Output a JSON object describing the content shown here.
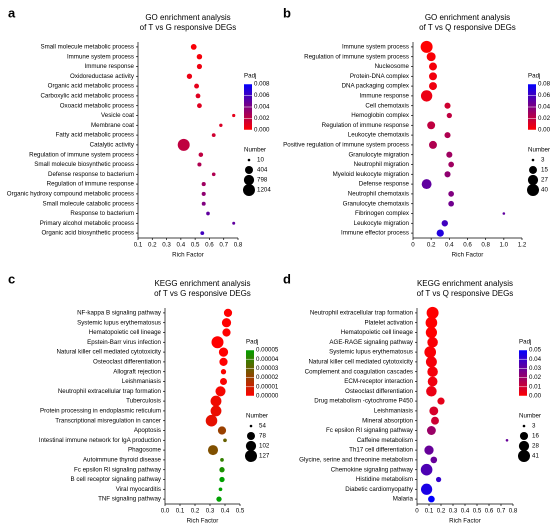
{
  "chart_data": [
    {
      "type": "bubble",
      "label": "a",
      "title": "GO enrichment analysis",
      "subtitle": "of T vs G responsive DEGs",
      "categories": [
        "Small molecule metabolic process",
        "Immune system process",
        "Immune response",
        "Oxidoreductase activity",
        "Organic acid metabolic process",
        "Carboxylic acid metabolic process",
        "Oxoacid metabolic process",
        "Vesicle coat",
        "Membrane coat",
        "Fatty acid metabolic process",
        "Catalytic activity",
        "Regulation of immune system process",
        "Small molecule biosynthetic process",
        "Defense response to bacterium",
        "Regulation of immune response",
        "Organic hydroxy compound metabolic process",
        "Small molecule catabolic process",
        "Response to bacterium",
        "Primary alcohol metabolic process",
        "Organic acid biosynthetic process"
      ],
      "values": [
        0.49,
        0.53,
        0.53,
        0.46,
        0.51,
        0.52,
        0.53,
        0.77,
        0.68,
        0.63,
        0.42,
        0.54,
        0.53,
        0.63,
        0.56,
        0.56,
        0.56,
        0.59,
        0.77,
        0.55
      ],
      "sizes": [
        150,
        120,
        100,
        110,
        80,
        75,
        75,
        15,
        18,
        30,
        1204,
        60,
        40,
        25,
        40,
        40,
        35,
        25,
        12,
        30
      ],
      "padj": [
        0.0002,
        0.0003,
        0.0005,
        0.0006,
        0.0008,
        0.001,
        0.001,
        0.0008,
        0.0012,
        0.0015,
        0.002,
        0.002,
        0.0025,
        0.0025,
        0.003,
        0.0035,
        0.004,
        0.005,
        0.005,
        0.006
      ],
      "xlim": [
        0.1,
        0.8
      ],
      "xticks": [
        0.1,
        0.2,
        0.3,
        0.4,
        0.5,
        0.6,
        0.7,
        0.8
      ],
      "xlabel": "Rich Factor",
      "padj_title": "Padj",
      "padj_lim": [
        0,
        0.008
      ],
      "padj_ticks": [
        {
          "value": 0,
          "label": "0.000"
        },
        {
          "value": 0.002,
          "label": "0.002"
        },
        {
          "value": 0.004,
          "label": "0.004"
        },
        {
          "value": 0.006,
          "label": "0.006"
        },
        {
          "value": 0.008,
          "label": "0.008"
        }
      ],
      "colors": [
        "#ff0000",
        "#0000ff"
      ],
      "size_title": "Number",
      "size_ticks": [
        10,
        404,
        798,
        1204
      ]
    },
    {
      "type": "bubble",
      "label": "b",
      "title": "GO enrichment analysis",
      "subtitle": "of T vs Q responsive DEGs",
      "categories": [
        "Immune system process",
        "Regulation of immune system process",
        "Nucleosome",
        "Protein-DNA complex",
        "DNA packaging complex",
        "Immune response",
        "Cell chemotaxis",
        "Hemoglobin complex",
        "Regulation of immune response",
        "Leukocyte chemotaxis",
        "Positive regulation of immune system process",
        "Granulocyte migration",
        "Neutrophil migration",
        "Myeloid leukocyte migration",
        "Defense response",
        "Neutrophil chemotaxis",
        "Granulocyte chemotaxis",
        "Fibrinogen complex",
        "Leukocyte migration",
        "Immune effector process"
      ],
      "values": [
        0.15,
        0.2,
        0.22,
        0.22,
        0.22,
        0.15,
        0.38,
        0.4,
        0.2,
        0.38,
        0.22,
        0.4,
        0.42,
        0.38,
        0.15,
        0.42,
        0.42,
        1.0,
        0.35,
        0.3
      ],
      "sizes": [
        40,
        20,
        15,
        15,
        15,
        35,
        8,
        6,
        15,
        8,
        15,
        8,
        7,
        8,
        25,
        7,
        7,
        3,
        9,
        12
      ],
      "padj": [
        0.0,
        0.002,
        0.003,
        0.004,
        0.005,
        0.006,
        0.015,
        0.02,
        0.02,
        0.025,
        0.025,
        0.03,
        0.03,
        0.035,
        0.05,
        0.04,
        0.045,
        0.05,
        0.06,
        0.07
      ],
      "xlim": [
        0,
        1.2
      ],
      "xticks": [
        0,
        0.2,
        0.4,
        0.6,
        0.8,
        {
          "value": 1.0,
          "label": "1.0"
        },
        1.2
      ],
      "xlabel": "Rich Factor",
      "padj_title": "Padj",
      "padj_lim": [
        0,
        0.08
      ],
      "padj_ticks": [
        {
          "value": 0,
          "label": "0.00"
        },
        {
          "value": 0.02,
          "label": "0.02"
        },
        {
          "value": 0.04,
          "label": "0.04"
        },
        {
          "value": 0.06,
          "label": "0.06"
        },
        {
          "value": 0.08,
          "label": "0.08"
        }
      ],
      "colors": [
        "#ff0000",
        "#0000ff"
      ],
      "size_title": "Number",
      "size_ticks": [
        3,
        15,
        27,
        40
      ]
    },
    {
      "type": "bubble",
      "label": "c",
      "title": "KEGG enrichment analysis",
      "subtitle": "of T vs G responsive DEGs",
      "categories": [
        "NF-kappa B signaling pathway",
        "Systemic lupus erythematosus",
        "Hematopoietic cell lineage",
        "Epstein-Barr virus infection",
        "Natural killer cell mediated cytotoxicity",
        "Osteoclast differentiation",
        "Allograft rejection",
        "Leishmaniasis",
        "Neutrophil extracellular trap formation",
        "Tuberculosis",
        "Protein processing in endoplasmic reticulum",
        "Transcriptional misregulation in cancer",
        "Apoptosis",
        "Intestinal immune network for IgA production",
        "Phagosome",
        "Autoimmune thyroid disease",
        "Fc epsilon RI signaling pathway",
        "B cell receptor signaling pathway",
        "Viral myocarditis",
        "TNF signaling pathway"
      ],
      "values": [
        0.42,
        0.41,
        0.41,
        0.35,
        0.39,
        0.39,
        0.39,
        0.39,
        0.37,
        0.34,
        0.34,
        0.31,
        0.38,
        0.4,
        0.32,
        0.38,
        0.38,
        0.38,
        0.37,
        0.36
      ],
      "sizes": [
        80,
        90,
        80,
        127,
        90,
        80,
        60,
        70,
        100,
        110,
        110,
        120,
        80,
        55,
        100,
        55,
        60,
        60,
        55,
        60
      ],
      "padj": [
        0.0,
        0.0,
        0.0,
        0.0,
        0.0,
        0.0,
        1e-06,
        1e-06,
        2e-06,
        3e-06,
        4e-06,
        5e-06,
        2e-05,
        3e-05,
        2.5e-05,
        4e-05,
        4.5e-05,
        5e-05,
        5e-05,
        5e-05
      ],
      "xlim": [
        0,
        0.5
      ],
      "xticks": [
        {
          "value": 0,
          "label": "0.0"
        },
        0.1,
        0.2,
        0.3,
        0.4,
        0.5
      ],
      "xlabel": "Rich Factor",
      "padj_title": "Padj",
      "padj_lim": [
        0,
        5e-05
      ],
      "padj_ticks": [
        {
          "value": 0,
          "label": "0.00000"
        },
        {
          "value": 1e-05,
          "label": "0.00001"
        },
        {
          "value": 2e-05,
          "label": "0.00002"
        },
        {
          "value": 3e-05,
          "label": "0.00003"
        },
        {
          "value": 4e-05,
          "label": "0.00004"
        },
        {
          "value": 5e-05,
          "label": "0.00005"
        }
      ],
      "colors": [
        "#ff0000",
        "#00a000"
      ],
      "size_title": "Number",
      "size_ticks": [
        54,
        78,
        102,
        127
      ]
    },
    {
      "type": "bubble",
      "label": "d",
      "title": "KEGG enrichment analysis",
      "subtitle": "of T vs Q responsive DEGs",
      "categories": [
        "Neutrophil extracellular trap formation",
        "Platelet activation",
        "Hematopoietic cell lineage",
        "AGE-RAGE signaling pathway",
        "Systemic lupus erythematosus",
        "Natural killer cell mediated cytotoxicity",
        "Complement and coagulation cascades",
        "ECM-receptor interaction",
        "Osteoclast differentiation",
        "Drug metabolism -cytochrome P450",
        "Leishmaniasis",
        "Mineral absorption",
        "Fc epsilon RI signaling pathway",
        "Caffeine metabolism",
        "Th17 cell differentiation",
        "Glycine, serine and threonine metabolism",
        "Chemokine signaling pathway",
        "Histidine metabolism",
        "Diabetic cardiomyopathy",
        "Malaria"
      ],
      "values": [
        0.13,
        0.12,
        0.12,
        0.13,
        0.11,
        0.12,
        0.13,
        0.13,
        0.12,
        0.2,
        0.14,
        0.15,
        0.12,
        0.75,
        0.1,
        0.14,
        0.08,
        0.18,
        0.08,
        0.12
      ],
      "sizes": [
        41,
        38,
        35,
        30,
        38,
        33,
        30,
        25,
        30,
        12,
        20,
        15,
        20,
        3,
        22,
        10,
        38,
        6,
        35,
        10
      ],
      "padj": [
        0.0,
        0.0,
        0.0,
        0.001,
        0.001,
        0.002,
        0.002,
        0.003,
        0.004,
        0.005,
        0.008,
        0.01,
        0.02,
        0.03,
        0.03,
        0.03,
        0.035,
        0.04,
        0.045,
        0.05
      ],
      "xlim": [
        0,
        0.8
      ],
      "xticks": [
        0,
        0.1,
        0.2,
        0.3,
        0.4,
        0.5,
        0.6,
        0.7,
        0.8
      ],
      "xlabel": "Rich Factor",
      "padj_title": "Padj",
      "padj_lim": [
        0,
        0.05
      ],
      "padj_ticks": [
        {
          "value": 0,
          "label": "0.00"
        },
        {
          "value": 0.01,
          "label": "0.01"
        },
        {
          "value": 0.02,
          "label": "0.02"
        },
        {
          "value": 0.03,
          "label": "0.03"
        },
        {
          "value": 0.04,
          "label": "0.04"
        },
        {
          "value": 0.05,
          "label": "0.05"
        }
      ],
      "colors": [
        "#ff0000",
        "#0000ff"
      ],
      "size_title": "Number",
      "size_ticks": [
        3,
        16,
        28,
        41
      ]
    }
  ]
}
